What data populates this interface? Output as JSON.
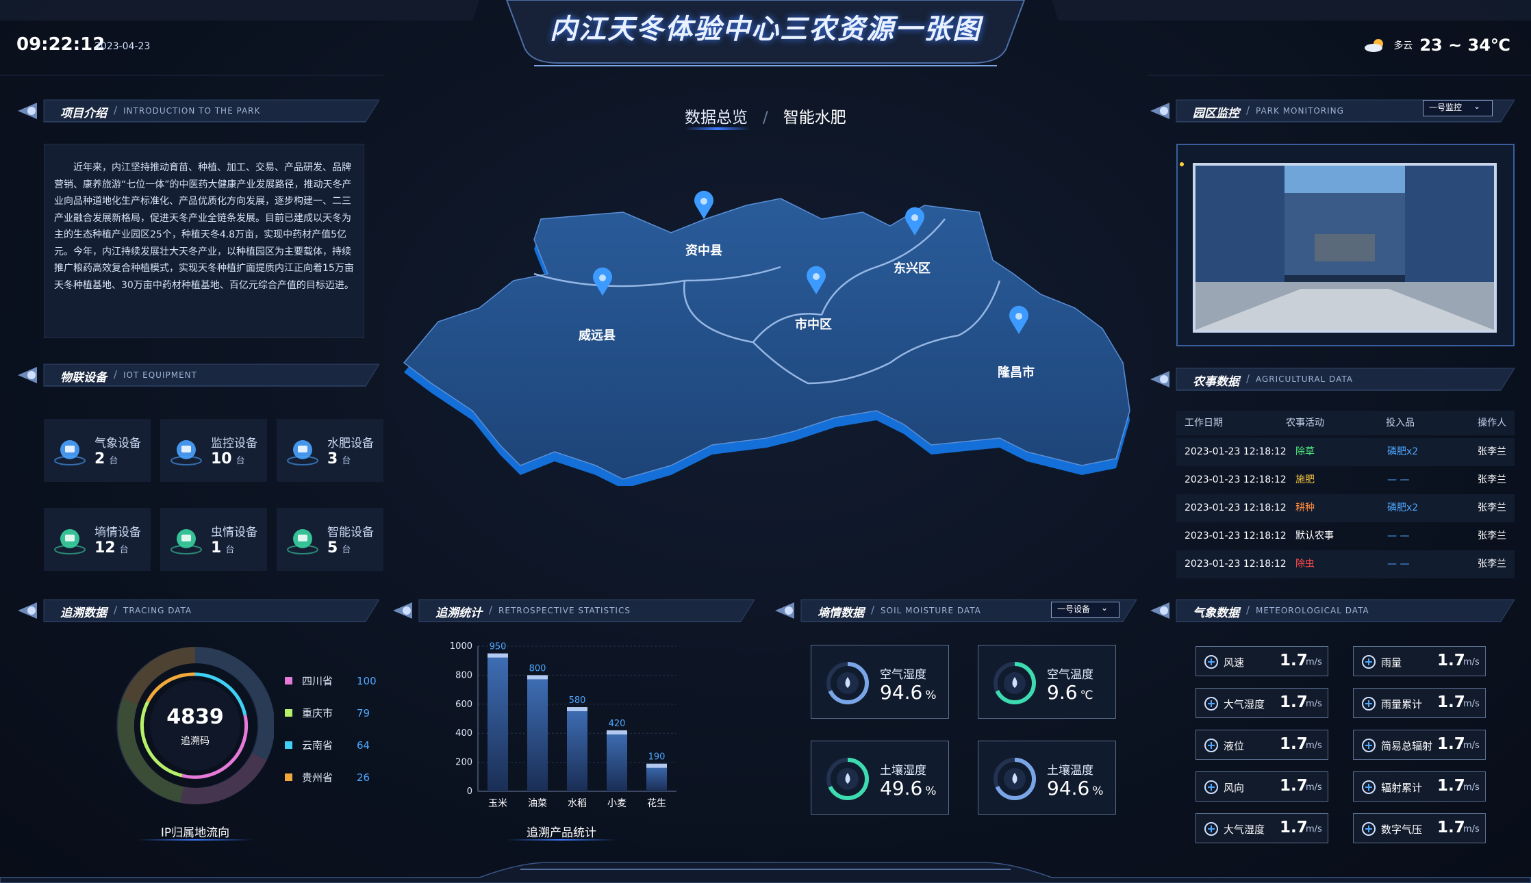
{
  "header": {
    "title": "内江天冬体验中心三农资源一张图",
    "time": "09:22:12",
    "date": "2023-04-23",
    "weather": {
      "icon": "partly-cloudy-icon",
      "text": "多云",
      "temp": "23 ~ 34℃"
    }
  },
  "tabs": [
    {
      "label": "数据总览",
      "active": true
    },
    {
      "label": "智能水肥",
      "active": false
    }
  ],
  "intro": {
    "title": "项目介绍",
    "subtitle": "INTRODUCTION TO THE PARK",
    "text": "近年来，内江坚持推动育苗、种植、加工、交易、产品研发、品牌营销、康养旅游“七位一体”的中医药大健康产业发展路径，推动天冬产业向品种道地化生产标准化、产品优质化方向发展，逐步构建一、二三产业融合发展新格局，促进天冬产业全链条发展。目前已建成以天冬为主的生态种植产业园区25个，种植天冬4.8万亩，实现中药材产值5亿元。今年，内江持续发展壮大天冬产业，以种植园区为主要载体，持续推广粮药高效复合种植模式，实现天冬种植扩面提质内江正向着15万亩天冬种植基地、30万亩中药材种植基地、百亿元综合产值的目标迈进。"
  },
  "iot": {
    "title": "物联设备",
    "subtitle": "IOT EQUIPMENT",
    "unit": "台",
    "devices": [
      {
        "label": "气象设备",
        "value": "2",
        "icon": "weather-station-icon"
      },
      {
        "label": "监控设备",
        "value": "10",
        "icon": "camera-icon"
      },
      {
        "label": "水肥设备",
        "value": "3",
        "icon": "water-fertilizer-icon"
      },
      {
        "label": "墒情设备",
        "value": "12",
        "icon": "fan-icon"
      },
      {
        "label": "虫情设备",
        "value": "1",
        "icon": "bug-icon"
      },
      {
        "label": "智能设备",
        "value": "5",
        "icon": "smart-device-icon"
      }
    ]
  },
  "map": {
    "regions": [
      "资中县",
      "东兴区",
      "威远县",
      "市中区",
      "隆昌市"
    ]
  },
  "monitor": {
    "title": "园区监控",
    "subtitle": "PARK MONITORING",
    "dropdown": "一号监控"
  },
  "agri": {
    "title": "农事数据",
    "subtitle": "AGRICULTURAL DATA",
    "columns": [
      "工作日期",
      "农事活动",
      "投入品",
      "操作人"
    ],
    "rows": [
      {
        "date": "2023-01-23 12:18:12",
        "activity": "除草",
        "color": "#4be27a",
        "input": "磷肥x2",
        "operator": "张李兰"
      },
      {
        "date": "2023-01-23 12:18:12",
        "activity": "施肥",
        "color": "#f5c542",
        "input": "— —",
        "operator": "张李兰"
      },
      {
        "date": "2023-01-23 12:18:12",
        "activity": "耕种",
        "color": "#ff8a3d",
        "input": "磷肥x2",
        "operator": "张李兰"
      },
      {
        "date": "2023-01-23 12:18:12",
        "activity": "默认农事",
        "color": "#ffffff",
        "input": "— —",
        "operator": "张李兰"
      },
      {
        "date": "2023-01-23 12:18:12",
        "activity": "除虫",
        "color": "#ff4a4a",
        "input": "— —",
        "operator": "张李兰"
      }
    ]
  },
  "tracing": {
    "title": "追溯数据",
    "subtitle": "TRACING DATA",
    "total": "4839",
    "total_label": "追溯码",
    "caption": "IP归属地流向",
    "legend": [
      {
        "name": "四川省",
        "value": "100",
        "color": "#e57ad8"
      },
      {
        "name": "重庆市",
        "value": "79",
        "color": "#b6f06a"
      },
      {
        "name": "云南省",
        "value": "64",
        "color": "#3fd0f5"
      },
      {
        "name": "贵州省",
        "value": "26",
        "color": "#f2a93b"
      }
    ]
  },
  "stats": {
    "title": "追溯统计",
    "subtitle": "RETROSPECTIVE STATISTICS",
    "caption": "追溯产品统计"
  },
  "soil": {
    "title": "墒情数据",
    "subtitle": "SOIL MOISTURE DATA",
    "dropdown": "一号设备",
    "cards": [
      {
        "label": "空气湿度",
        "value": "94.6",
        "unit": "%"
      },
      {
        "label": "空气温度",
        "value": "9.6",
        "unit": "℃"
      },
      {
        "label": "土壤湿度",
        "value": "49.6",
        "unit": "%"
      },
      {
        "label": "土壤温度",
        "value": "94.6",
        "unit": "%"
      }
    ]
  },
  "meteo": {
    "title": "气象数据",
    "subtitle": "METEOROLOGICAL DATA",
    "items": [
      {
        "label": "风速",
        "value": "1.7",
        "unit": "m/s",
        "icon": "wind-speed-icon"
      },
      {
        "label": "雨量",
        "value": "1.7",
        "unit": "m/s",
        "icon": "rain-cloud-icon"
      },
      {
        "label": "大气湿度",
        "value": "1.7",
        "unit": "m/s",
        "icon": "thermometer-icon"
      },
      {
        "label": "雨量累计",
        "value": "1.7",
        "unit": "m/s",
        "icon": "rain-accum-icon"
      },
      {
        "label": "液位",
        "value": "1.7",
        "unit": "m/s",
        "icon": "water-level-icon"
      },
      {
        "label": "简易总辐射",
        "value": "1.7",
        "unit": "m/s",
        "icon": "radiation-icon"
      },
      {
        "label": "风向",
        "value": "1.7",
        "unit": "m/s",
        "icon": "compass-icon"
      },
      {
        "label": "辐射累计",
        "value": "1.7",
        "unit": "m/s",
        "icon": "radiation-accum-icon"
      },
      {
        "label": "大气湿度",
        "value": "1.7",
        "unit": "m/s",
        "icon": "humidity-icon"
      },
      {
        "label": "数字气压",
        "value": "1.7",
        "unit": "m/s",
        "icon": "pressure-icon"
      }
    ]
  },
  "chart_data": {
    "type": "bar",
    "categories": [
      "玉米",
      "油菜",
      "水稻",
      "小麦",
      "花生"
    ],
    "values": [
      950,
      800,
      580,
      420,
      190
    ],
    "ylim": [
      0,
      1000
    ],
    "yticks": [
      "0",
      "200",
      "400",
      "600",
      "800",
      "1000"
    ]
  }
}
